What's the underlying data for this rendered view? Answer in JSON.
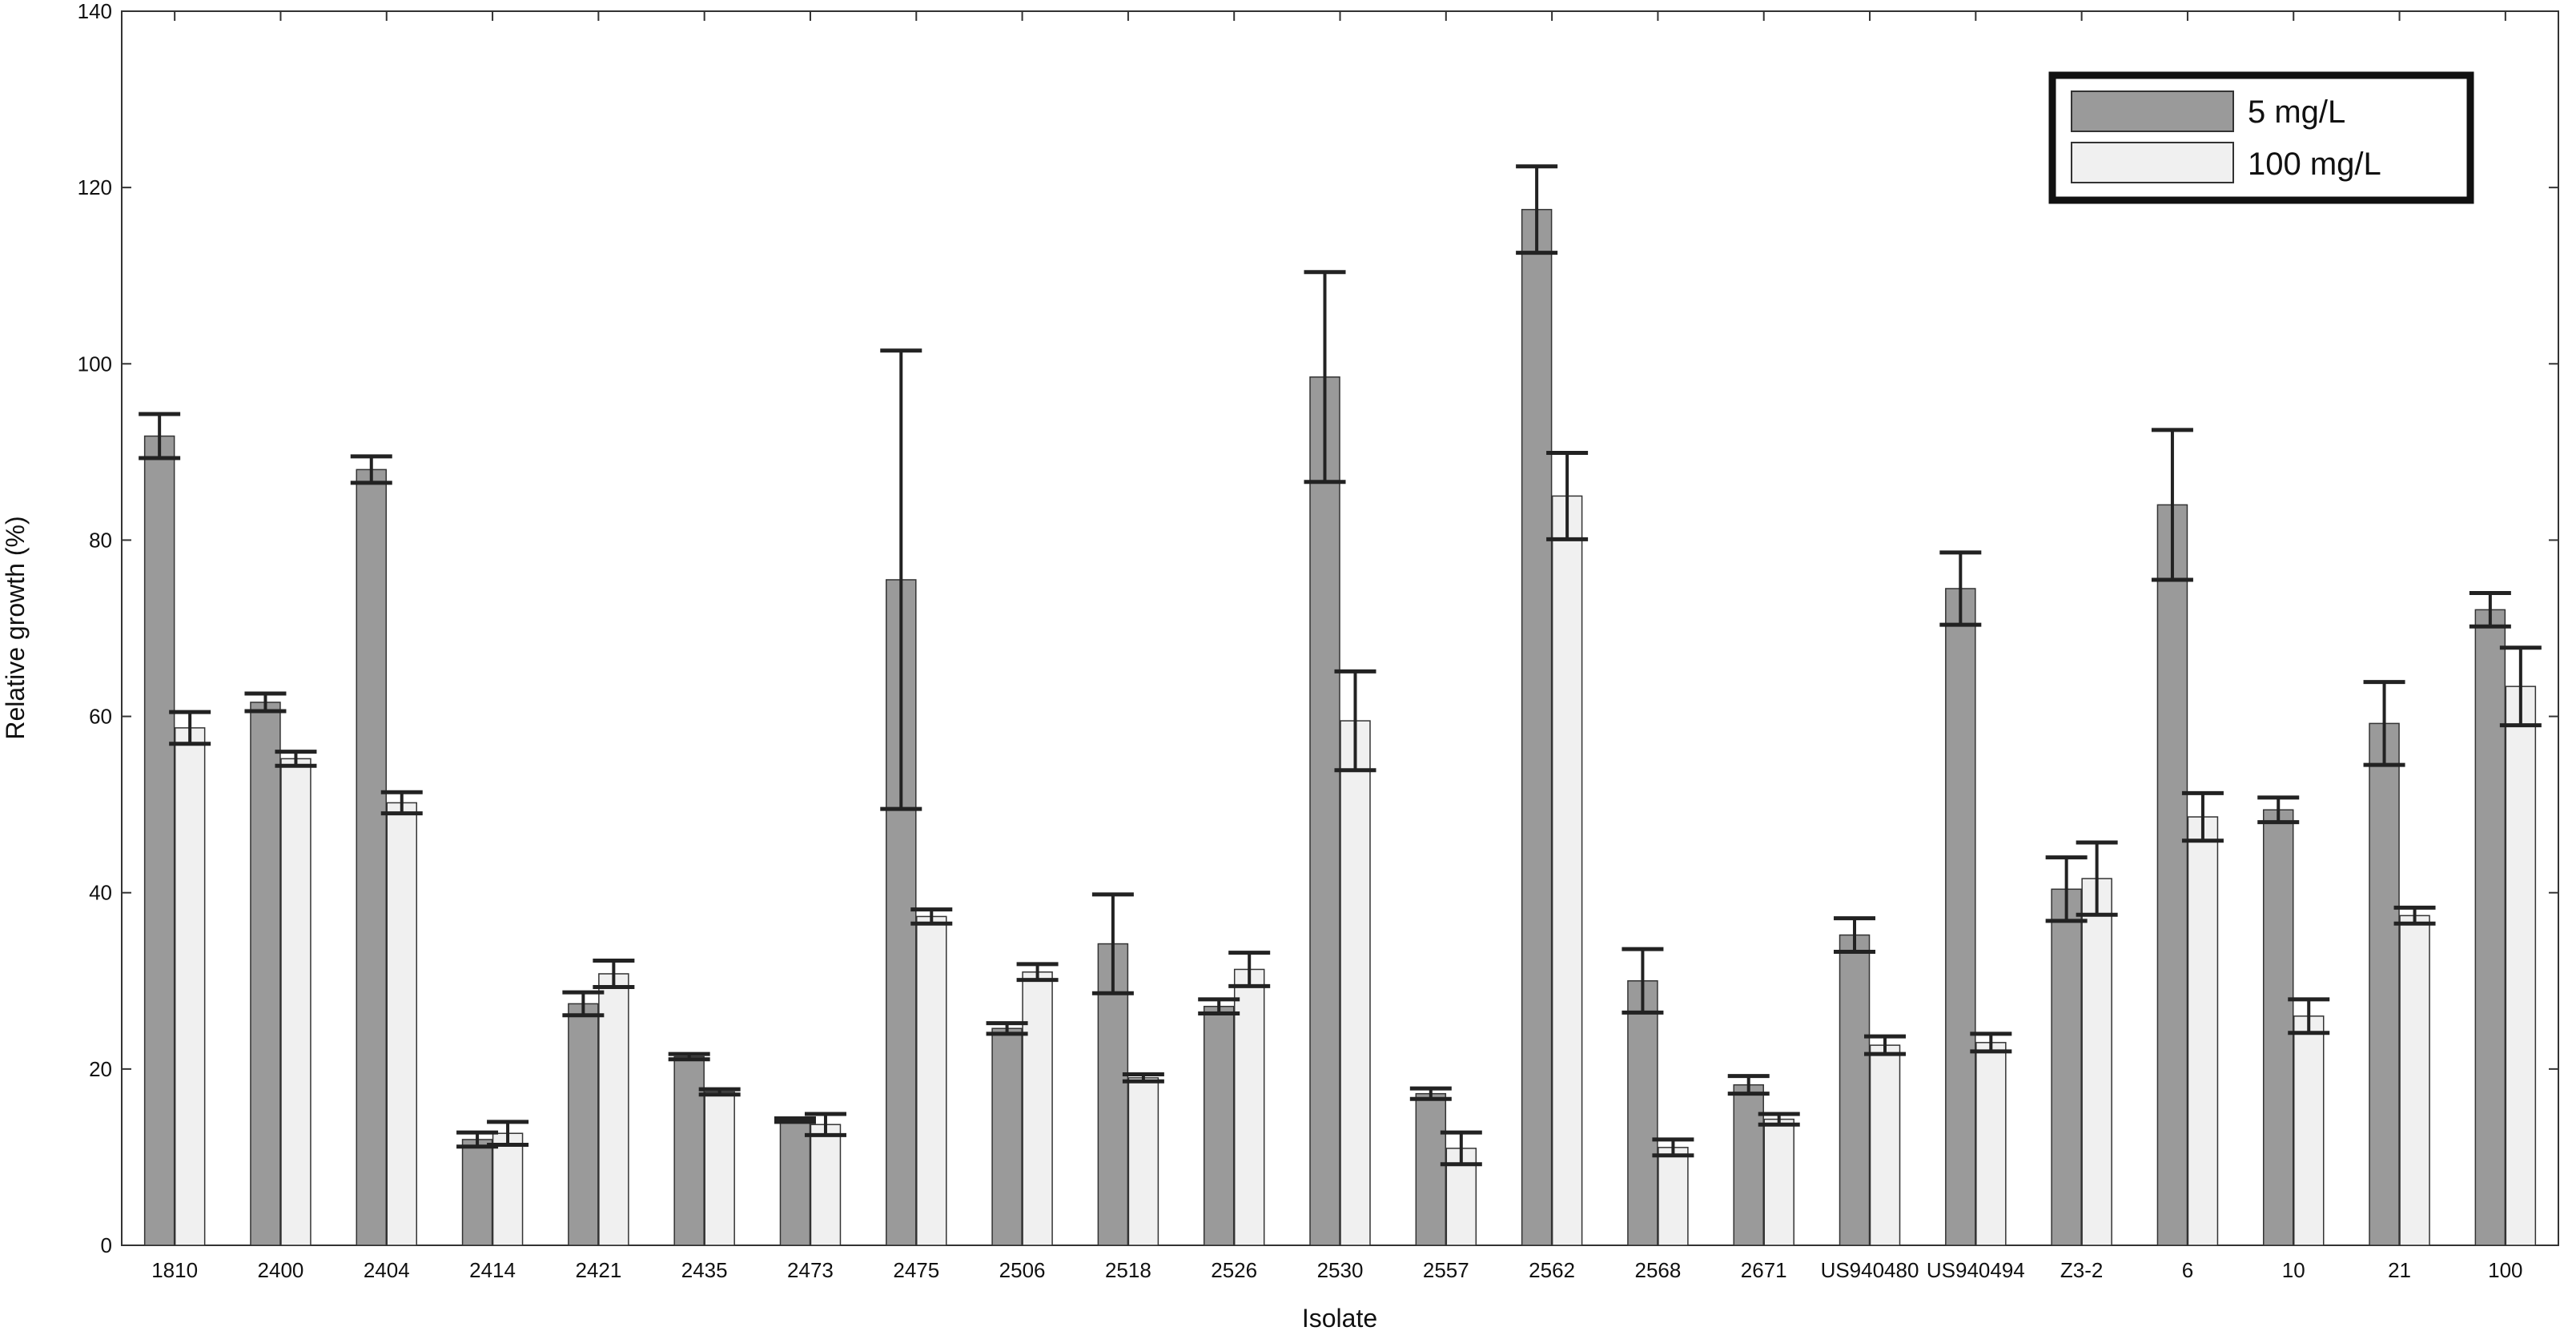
{
  "chart_data": {
    "type": "bar",
    "xlabel": "Isolate",
    "ylabel": "Relative growth (%)",
    "ylim": [
      0,
      140
    ],
    "yticks": [
      0,
      20,
      40,
      60,
      80,
      100,
      120,
      140
    ],
    "grid": false,
    "legend_position": "top-right",
    "categories": [
      "1810",
      "2400",
      "2404",
      "2414",
      "2421",
      "2435",
      "2473",
      "2475",
      "2506",
      "2518",
      "2526",
      "2530",
      "2557",
      "2562",
      "2568",
      "2671",
      "US940480",
      "US940494",
      "Z3-2",
      "6",
      "10",
      "21",
      "100"
    ],
    "series": [
      {
        "name": "5 mg/L",
        "color": "#9a9a9a",
        "values": [
          91.8,
          61.6,
          88.0,
          12.0,
          27.4,
          21.4,
          14.2,
          75.5,
          24.6,
          34.2,
          27.1,
          98.5,
          17.2,
          117.5,
          30.0,
          18.2,
          35.2,
          74.5,
          40.4,
          84.0,
          49.4,
          59.2,
          72.1
        ],
        "error": [
          2.5,
          1.0,
          1.5,
          0.8,
          1.3,
          0.3,
          0.2,
          26.0,
          0.6,
          5.6,
          0.8,
          11.9,
          0.6,
          4.9,
          3.6,
          1.0,
          1.9,
          4.1,
          3.6,
          8.5,
          1.4,
          4.7,
          1.9
        ]
      },
      {
        "name": "100 mg/L",
        "color": "#f0f0f0",
        "values": [
          58.7,
          55.2,
          50.2,
          12.7,
          30.8,
          17.4,
          13.7,
          37.3,
          31.0,
          19.0,
          31.3,
          59.5,
          11.0,
          85.0,
          11.1,
          14.3,
          22.7,
          23.0,
          41.6,
          48.6,
          26.0,
          37.4,
          63.4
        ],
        "error": [
          1.8,
          0.8,
          1.2,
          1.3,
          1.5,
          0.3,
          1.2,
          0.8,
          0.9,
          0.4,
          1.9,
          5.6,
          1.8,
          4.9,
          0.9,
          0.6,
          1.0,
          1.0,
          4.1,
          2.7,
          1.9,
          0.9,
          4.4
        ]
      }
    ]
  }
}
